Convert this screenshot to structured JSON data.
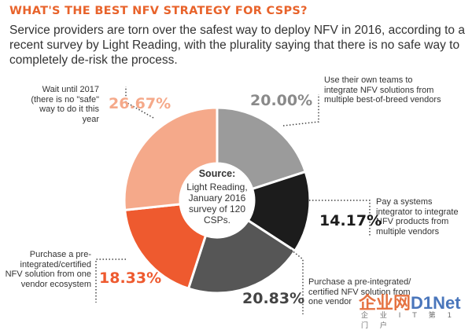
{
  "header": {
    "title": "WHAT'S THE BEST NFV STRATEGY FOR  CSPS?",
    "subtitle": "Service providers are torn over the safest way to deploy NFV in 2016, according to a recent survey by Light Reading, with the plurality saying that there is no safe way to completely de-risk the process."
  },
  "center": {
    "heading": "Source:",
    "text": "Light Reading, January 2016 survey of 120 CSPs."
  },
  "colors": {
    "peach": "#f5a98a",
    "light_gray": "#9b9b9b",
    "black": "#1c1c1c",
    "dark_gray": "#565656",
    "orange": "#ee5a2f",
    "accent": "#e8632b"
  },
  "chart_data": {
    "type": "pie",
    "donut": true,
    "categories": [
      "Use their own teams to integrate NFV solutions from multiple best-of-breed vendors",
      "Pay a systems integrator to integrate NFV products from multiple vendors",
      "Purchase a pre-integrated/ certified NFV solution from one vendor",
      "Purchase a pre-integrated/certified NFV solution from one vendor ecosystem",
      "Wait until 2017 (there is no \"safe\" way to do it this year"
    ],
    "values": [
      20.0,
      14.17,
      20.83,
      18.33,
      26.67
    ],
    "value_labels": [
      "20.00%",
      "14.17%",
      "20.83%",
      "18.33%",
      "26.67%"
    ],
    "slice_colors": [
      "#9b9b9b",
      "#1c1c1c",
      "#565656",
      "#ee5a2f",
      "#f5a98a"
    ],
    "value_label_colors": [
      "#8a8a8a",
      "#1c1c1c",
      "#444444",
      "#ee5a2f",
      "#f5a98a"
    ]
  },
  "watermark": {
    "logo_a": "企业网",
    "logo_b": "D1Net",
    "sub": "企 业 I T 第 1 门 户"
  }
}
